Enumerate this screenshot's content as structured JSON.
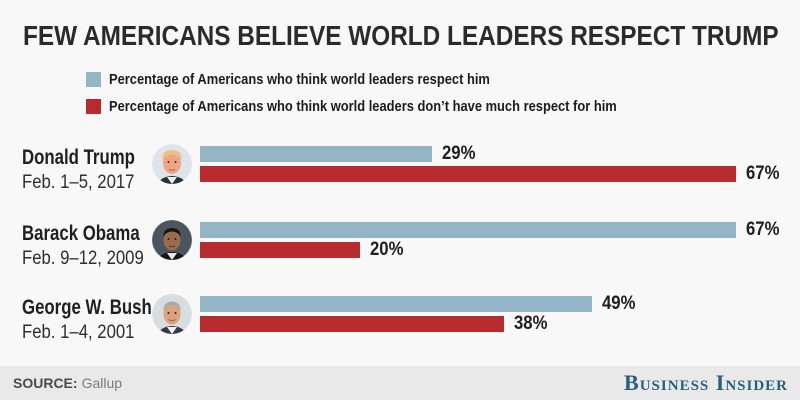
{
  "title": "FEW AMERICANS BELIEVE WORLD LEADERS RESPECT TRUMP",
  "chart_data": {
    "type": "bar",
    "orientation": "horizontal",
    "unit": "percent",
    "grid": false,
    "legend_position": "top",
    "xlim": [
      0,
      75
    ],
    "categories": [
      "Donald Trump",
      "Barack Obama",
      "George W. Bush"
    ],
    "category_sublabels": [
      "Feb. 1–5, 2017",
      "Feb. 9–12, 2009",
      "Feb. 1–4, 2001"
    ],
    "series": [
      {
        "name": "Percentage of Americans who think world leaders respect him",
        "color": "#93b5c5",
        "values": [
          29,
          67,
          49
        ]
      },
      {
        "name": "Percentage of Americans who think world leaders don’t have much respect for him",
        "color": "#b72b2e",
        "values": [
          67,
          20,
          38
        ]
      }
    ],
    "value_labels": [
      [
        "29%",
        "67%"
      ],
      [
        "67%",
        "20%"
      ],
      [
        "49%",
        "38%"
      ]
    ]
  },
  "avatar_icons": [
    "donald-trump-photo",
    "barack-obama-photo",
    "george-w-bush-photo"
  ],
  "footer": {
    "source_label": "SOURCE:",
    "source_value": "Gallup",
    "brand": "Business Insider"
  },
  "colors": {
    "background": "#f8f8f8",
    "footer_background": "#e9e9e9",
    "title_text": "#2b2b2b",
    "respect_blue": "#93b5c5",
    "no_respect_red": "#b72b2e",
    "brand_blue": "#26607f"
  }
}
